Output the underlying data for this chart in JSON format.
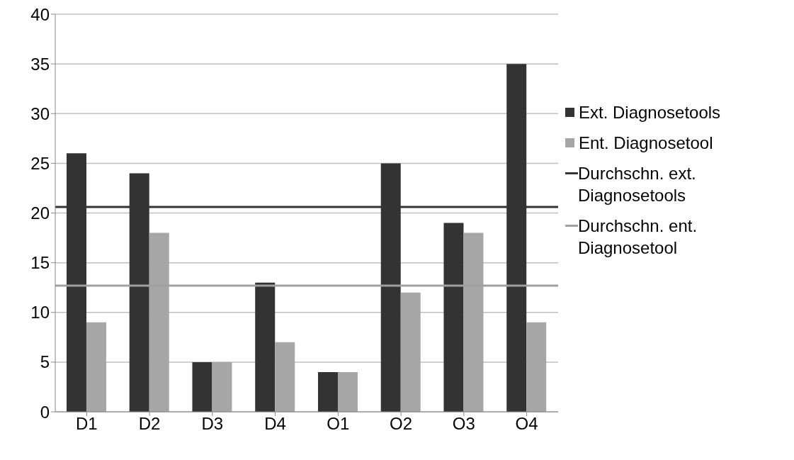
{
  "chart_data": {
    "type": "bar",
    "categories": [
      "D1",
      "D2",
      "D3",
      "D4",
      "O1",
      "O2",
      "O3",
      "O4"
    ],
    "series": [
      {
        "name": "Ext. Diagnosetools",
        "color": "#333333",
        "values": [
          26,
          24,
          5,
          13,
          4,
          25,
          19,
          35
        ]
      },
      {
        "name": "Ent. Diagnosetool",
        "color": "#a6a6a6",
        "values": [
          9,
          18,
          5,
          7,
          4,
          12,
          18,
          9
        ]
      }
    ],
    "ref_lines": [
      {
        "axis": "y",
        "value": 20.6,
        "label": "Durchschn. ext. Diagnosetools",
        "color": "#333333"
      },
      {
        "axis": "y",
        "value": 12.7,
        "label": "Durchschn. ent. Diagnosetool",
        "color": "#a0a0a0"
      }
    ],
    "ylim": [
      0,
      40
    ],
    "yticks": [
      0,
      5,
      10,
      15,
      20,
      25,
      30,
      35,
      40
    ],
    "grid": "y",
    "legend": "right"
  }
}
